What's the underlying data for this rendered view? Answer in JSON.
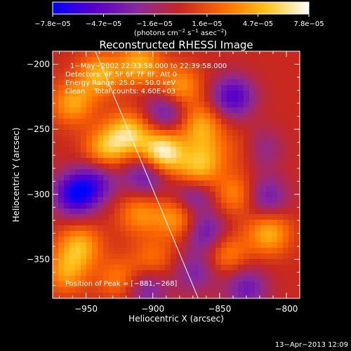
{
  "chart_data": {
    "type": "heatmap",
    "title": "Reconstructed RHESSI Image",
    "xlabel": "Heliocentric X (arcsec)",
    "ylabel": "Heliocentric Y (arcsec)",
    "xlim": [
      -975,
      -790
    ],
    "ylim": [
      -380,
      -190
    ],
    "x_ticks": [
      -950,
      -900,
      -850,
      -800
    ],
    "x_tick_labels": [
      "−950",
      "−900",
      "−850",
      "−800"
    ],
    "y_ticks": [
      -200,
      -250,
      -300,
      -350
    ],
    "y_tick_labels": [
      "−200",
      "−250",
      "−300",
      "−350"
    ],
    "colorbar": {
      "min": -7.8e-05,
      "max": 7.8e-05,
      "ticks": [
        -7.8e-05,
        -4.7e-05,
        -1.6e-05,
        1.6e-05,
        4.7e-05,
        7.8e-05
      ],
      "tick_labels": [
        "−7.8e−05",
        "−4.7e−05",
        "−1.6e−05",
        "1.6e−05",
        "4.7e−05",
        "7.8e−05"
      ],
      "units_main": "(photons cm",
      "units_exp1": "−2",
      "units_mid": " s",
      "units_exp2": "−1",
      "units_tail": " asec",
      "units_exp3": "−2",
      "units_close": ")",
      "colors": [
        "#0000ff",
        "#5a00c8",
        "#8a2a9a",
        "#c8281e",
        "#ff6a00",
        "#ffc21a",
        "#ffffff"
      ]
    },
    "annotations": {
      "line1": "1−May−2002 22:33:58.000 to 22:39:58.000",
      "line2": "Detectors: 4F 5F 6F 7F 8F, Att 0",
      "line3": "Energy Range: 25.0 − 50.0 keV",
      "line4": "Clean    Total counts: 4.60E+03",
      "peak": "Position of Peak = [−881,−268]"
    },
    "limb_line": {
      "x1": -943,
      "y1": -190,
      "x2": -866,
      "y2": -380,
      "color": "#ffffff"
    },
    "sources": [
      {
        "x": -893,
        "y": -268,
        "amp": 1.0
      },
      {
        "x": -918,
        "y": -253,
        "amp": 0.7
      },
      {
        "x": -935,
        "y": -265,
        "amp": 0.6
      },
      {
        "x": -960,
        "y": -230,
        "amp": 0.55
      },
      {
        "x": -940,
        "y": -208,
        "amp": 0.6
      },
      {
        "x": -910,
        "y": -200,
        "amp": 0.6
      },
      {
        "x": -880,
        "y": -218,
        "amp": 0.55
      },
      {
        "x": -864,
        "y": -247,
        "amp": 0.55
      },
      {
        "x": -860,
        "y": -270,
        "amp": 0.4
      },
      {
        "x": -868,
        "y": -285,
        "amp": 0.55
      },
      {
        "x": -827,
        "y": -265,
        "amp": 0.6
      },
      {
        "x": -838,
        "y": -300,
        "amp": 0.45
      },
      {
        "x": -813,
        "y": -330,
        "amp": 0.6
      },
      {
        "x": -845,
        "y": -345,
        "amp": 0.45
      },
      {
        "x": -882,
        "y": -318,
        "amp": 0.55
      },
      {
        "x": -910,
        "y": -315,
        "amp": 0.45
      },
      {
        "x": -955,
        "y": -340,
        "amp": 0.6
      },
      {
        "x": -965,
        "y": -360,
        "amp": 0.5
      },
      {
        "x": -925,
        "y": -365,
        "amp": 0.4
      },
      {
        "x": -900,
        "y": -350,
        "amp": 0.35
      },
      {
        "x": -958,
        "y": -300,
        "amp": -0.9
      },
      {
        "x": -942,
        "y": -290,
        "amp": -0.5
      },
      {
        "x": -890,
        "y": -236,
        "amp": -0.55
      },
      {
        "x": -905,
        "y": -285,
        "amp": -0.6
      },
      {
        "x": -870,
        "y": -300,
        "amp": -0.6
      },
      {
        "x": -840,
        "y": -225,
        "amp": -0.7
      },
      {
        "x": -822,
        "y": -265,
        "amp": -0.75
      },
      {
        "x": -815,
        "y": -302,
        "amp": -0.5
      },
      {
        "x": -860,
        "y": -330,
        "amp": -0.55
      },
      {
        "x": -830,
        "y": -372,
        "amp": -0.5
      },
      {
        "x": -905,
        "y": -372,
        "amp": -0.45
      },
      {
        "x": -868,
        "y": -360,
        "amp": -0.4
      }
    ]
  },
  "footer": {
    "timestamp": "13−Apr−2013 12:09"
  }
}
